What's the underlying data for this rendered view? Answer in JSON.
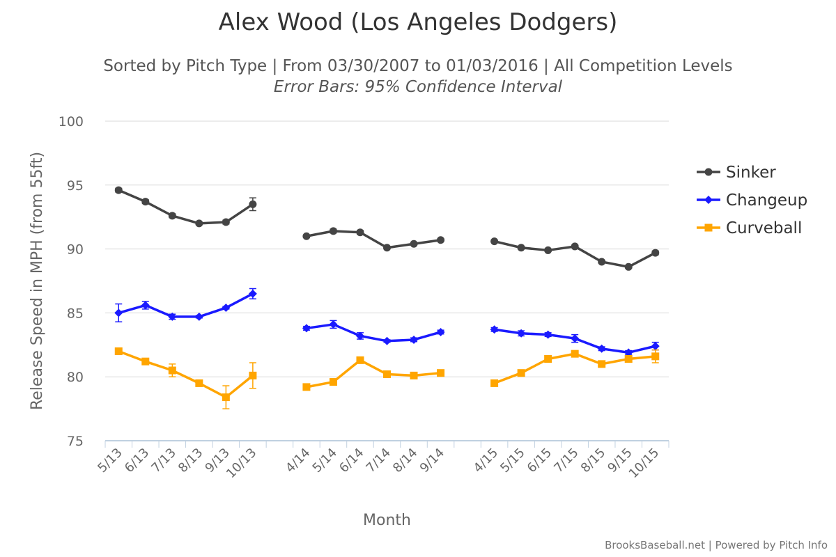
{
  "chart_data": {
    "type": "line",
    "title": "Alex Wood (Los Angeles Dodgers)",
    "subtitle": "Sorted by Pitch Type | From 03/30/2007 to 01/03/2016 | All Competition Levels",
    "subtitle2": "Error Bars: 95% Confidence Interval",
    "xlabel": "Month",
    "ylabel": "Release Speed in MPH (from 55ft)",
    "ylim": [
      75,
      100
    ],
    "yticks": [
      75,
      80,
      85,
      90,
      95,
      100
    ],
    "grid": true,
    "legend_position": "right",
    "categories": [
      [
        "5/13",
        "6/13",
        "7/13",
        "8/13",
        "9/13",
        "10/13"
      ],
      [
        "4/14",
        "5/14",
        "6/14",
        "7/14",
        "8/14",
        "9/14"
      ],
      [
        "4/15",
        "5/15",
        "6/15",
        "7/15",
        "8/15",
        "9/15",
        "10/15"
      ]
    ],
    "series": [
      {
        "name": "Sinker",
        "color": "#444444",
        "marker": "circle",
        "values": [
          [
            94.6,
            93.7,
            92.6,
            92.0,
            92.1,
            93.5
          ],
          [
            91.0,
            91.4,
            91.3,
            90.1,
            90.4,
            90.7
          ],
          [
            90.6,
            90.1,
            89.9,
            90.2,
            89.0,
            88.6,
            89.7
          ]
        ],
        "errors": [
          [
            0.15,
            0.15,
            0.15,
            0.1,
            0.15,
            0.5
          ],
          [
            0.1,
            0.15,
            0.15,
            0.1,
            0.1,
            0.1
          ],
          [
            0.1,
            0.1,
            0.1,
            0.1,
            0.1,
            0.1,
            0.15
          ]
        ]
      },
      {
        "name": "Changeup",
        "color": "#1a1aff",
        "marker": "diamond",
        "values": [
          [
            85.0,
            85.6,
            84.7,
            84.7,
            85.4,
            86.5
          ],
          [
            83.8,
            84.1,
            83.2,
            82.8,
            82.9,
            83.5
          ],
          [
            83.7,
            83.4,
            83.3,
            83.0,
            82.2,
            81.9,
            82.4
          ]
        ],
        "errors": [
          [
            0.7,
            0.3,
            0.2,
            0.1,
            0.1,
            0.4
          ],
          [
            0.15,
            0.3,
            0.25,
            0.1,
            0.15,
            0.15
          ],
          [
            0.15,
            0.2,
            0.15,
            0.3,
            0.15,
            0.15,
            0.3
          ]
        ]
      },
      {
        "name": "Curveball",
        "color": "#ffa500",
        "marker": "square",
        "values": [
          [
            82.0,
            81.2,
            80.5,
            79.5,
            78.4,
            80.1
          ],
          [
            79.2,
            79.6,
            81.3,
            80.2,
            80.1,
            80.3
          ],
          [
            79.5,
            80.3,
            81.4,
            81.8,
            81.0,
            81.4,
            81.6
          ]
        ],
        "errors": [
          [
            0.1,
            0.2,
            0.5,
            0.15,
            0.9,
            1.0
          ],
          [
            0.1,
            0.1,
            0.15,
            0.1,
            0.1,
            0.1
          ],
          [
            0.1,
            0.1,
            0.15,
            0.15,
            0.15,
            0.15,
            0.5
          ]
        ]
      }
    ]
  },
  "credits": "BrooksBaseball.net | Powered by Pitch Info"
}
